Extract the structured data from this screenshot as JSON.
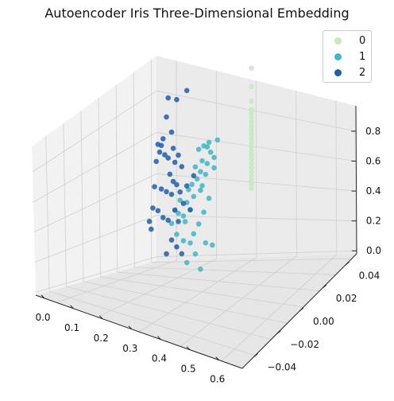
{
  "chart_data": {
    "type": "scatter",
    "title": "Autoencoder Iris Three-Dimensional Embedding",
    "xlabel": "",
    "ylabel": "",
    "zlabel": "",
    "xlim": [
      -0.03,
      0.68
    ],
    "ylim": [
      -0.05,
      0.05
    ],
    "zlim": [
      -0.02,
      0.97
    ],
    "x_ticks": [
      "0.0",
      "0.1",
      "0.2",
      "0.3",
      "0.4",
      "0.5",
      "0.6"
    ],
    "y_ticks": [
      "−0.04",
      "−0.02",
      "0.00",
      "0.02",
      "0.04"
    ],
    "z_ticks": [
      "0.0",
      "0.2",
      "0.4",
      "0.6",
      "0.8"
    ],
    "legend": {
      "position": "top-right"
    },
    "grid": true,
    "series": [
      {
        "name": "0",
        "color": "#c7e9c0",
        "points": [
          [
            0.0,
            0.0,
            0.9
          ],
          [
            0.0,
            0.0,
            0.81
          ],
          [
            0.0,
            0.0,
            0.74
          ],
          [
            0.0,
            0.0,
            0.7
          ],
          [
            0.0,
            0.0,
            0.68
          ],
          [
            0.0,
            0.0,
            0.66
          ],
          [
            0.0,
            0.0,
            0.64
          ],
          [
            0.0,
            0.0,
            0.62
          ],
          [
            0.0,
            0.0,
            0.6
          ],
          [
            0.0,
            0.0,
            0.58
          ],
          [
            0.0,
            0.0,
            0.56
          ],
          [
            0.0,
            0.0,
            0.54
          ],
          [
            0.0,
            0.0,
            0.52
          ],
          [
            0.0,
            0.0,
            0.5
          ],
          [
            0.0,
            0.0,
            0.48
          ],
          [
            0.0,
            0.0,
            0.46
          ],
          [
            0.0,
            0.0,
            0.44
          ],
          [
            0.0,
            0.0,
            0.42
          ],
          [
            0.0,
            0.0,
            0.4
          ],
          [
            0.0,
            0.0,
            0.38
          ],
          [
            0.0,
            0.0,
            0.36
          ],
          [
            0.0,
            0.0,
            0.34
          ],
          [
            0.0,
            0.0,
            0.32
          ]
        ]
      },
      {
        "name": "1",
        "color": "#41b6c4",
        "points": [
          [
            0.2,
            0.0,
            0.6
          ],
          [
            0.22,
            0.0,
            0.52
          ],
          [
            0.22,
            0.0,
            0.47
          ],
          [
            0.24,
            0.0,
            0.55
          ],
          [
            0.25,
            0.0,
            0.6
          ],
          [
            0.26,
            0.0,
            0.58
          ],
          [
            0.26,
            0.0,
            0.5
          ],
          [
            0.27,
            0.0,
            0.45
          ],
          [
            0.28,
            0.0,
            0.59
          ],
          [
            0.29,
            0.0,
            0.4
          ],
          [
            0.29,
            0.0,
            0.52
          ],
          [
            0.3,
            0.0,
            0.47
          ],
          [
            0.3,
            0.0,
            0.38
          ],
          [
            0.31,
            0.0,
            0.58
          ],
          [
            0.32,
            0.0,
            0.44
          ],
          [
            0.33,
            0.0,
            0.5
          ],
          [
            0.34,
            0.0,
            0.36
          ],
          [
            0.35,
            0.0,
            0.42
          ],
          [
            0.36,
            0.0,
            0.3
          ],
          [
            0.37,
            0.0,
            0.4
          ],
          [
            0.38,
            0.0,
            0.34
          ],
          [
            0.39,
            0.0,
            0.25
          ],
          [
            0.4,
            0.0,
            0.28
          ],
          [
            0.42,
            0.0,
            0.36
          ],
          [
            0.43,
            0.0,
            0.3
          ],
          [
            0.44,
            0.0,
            0.2
          ],
          [
            0.45,
            0.0,
            0.32
          ],
          [
            0.47,
            0.0,
            0.26
          ],
          [
            0.25,
            0.0,
            0.33
          ],
          [
            0.28,
            0.0,
            0.27
          ],
          [
            0.31,
            0.0,
            0.22
          ],
          [
            0.34,
            0.0,
            0.18
          ],
          [
            0.36,
            0.0,
            0.14
          ],
          [
            0.4,
            0.0,
            0.16
          ],
          [
            0.23,
            0.0,
            0.1
          ],
          [
            0.27,
            0.0,
            0.12
          ],
          [
            0.33,
            0.0,
            0.08
          ],
          [
            0.38,
            0.0,
            0.05
          ],
          [
            0.3,
            0.0,
            0.0
          ]
        ]
      },
      {
        "name": "2",
        "color": "#225ea8",
        "points": [
          [
            0.38,
            0.0,
            0.88
          ],
          [
            0.44,
            0.0,
            0.85
          ],
          [
            0.49,
            0.0,
            0.87
          ],
          [
            0.5,
            0.0,
            0.78
          ],
          [
            0.47,
            0.0,
            0.7
          ],
          [
            0.52,
            0.0,
            0.68
          ],
          [
            0.53,
            0.0,
            0.65
          ],
          [
            0.54,
            0.0,
            0.62
          ],
          [
            0.55,
            0.0,
            0.66
          ],
          [
            0.51,
            0.0,
            0.6
          ],
          [
            0.49,
            0.0,
            0.58
          ],
          [
            0.56,
            0.0,
            0.58
          ],
          [
            0.46,
            0.0,
            0.62
          ],
          [
            0.45,
            0.0,
            0.55
          ],
          [
            0.43,
            0.0,
            0.58
          ],
          [
            0.41,
            0.0,
            0.52
          ],
          [
            0.48,
            0.0,
            0.5
          ],
          [
            0.46,
            0.0,
            0.46
          ],
          [
            0.44,
            0.0,
            0.44
          ],
          [
            0.42,
            0.0,
            0.4
          ],
          [
            0.47,
            0.0,
            0.4
          ],
          [
            0.5,
            0.0,
            0.42
          ],
          [
            0.53,
            0.0,
            0.44
          ],
          [
            0.57,
            0.0,
            0.46
          ],
          [
            0.58,
            0.0,
            0.36
          ],
          [
            0.55,
            0.0,
            0.34
          ],
          [
            0.6,
            0.0,
            0.3
          ],
          [
            0.59,
            0.0,
            0.26
          ],
          [
            0.52,
            0.0,
            0.3
          ],
          [
            0.49,
            0.0,
            0.28
          ],
          [
            0.45,
            0.0,
            0.32
          ],
          [
            0.43,
            0.0,
            0.26
          ],
          [
            0.4,
            0.0,
            0.34
          ],
          [
            0.38,
            0.0,
            0.42
          ],
          [
            0.36,
            0.0,
            0.3
          ],
          [
            0.34,
            0.0,
            0.46
          ],
          [
            0.47,
            0.0,
            0.18
          ],
          [
            0.44,
            0.0,
            0.14
          ],
          [
            0.5,
            0.0,
            0.12
          ],
          [
            0.41,
            0.0,
            0.1
          ]
        ]
      }
    ]
  }
}
